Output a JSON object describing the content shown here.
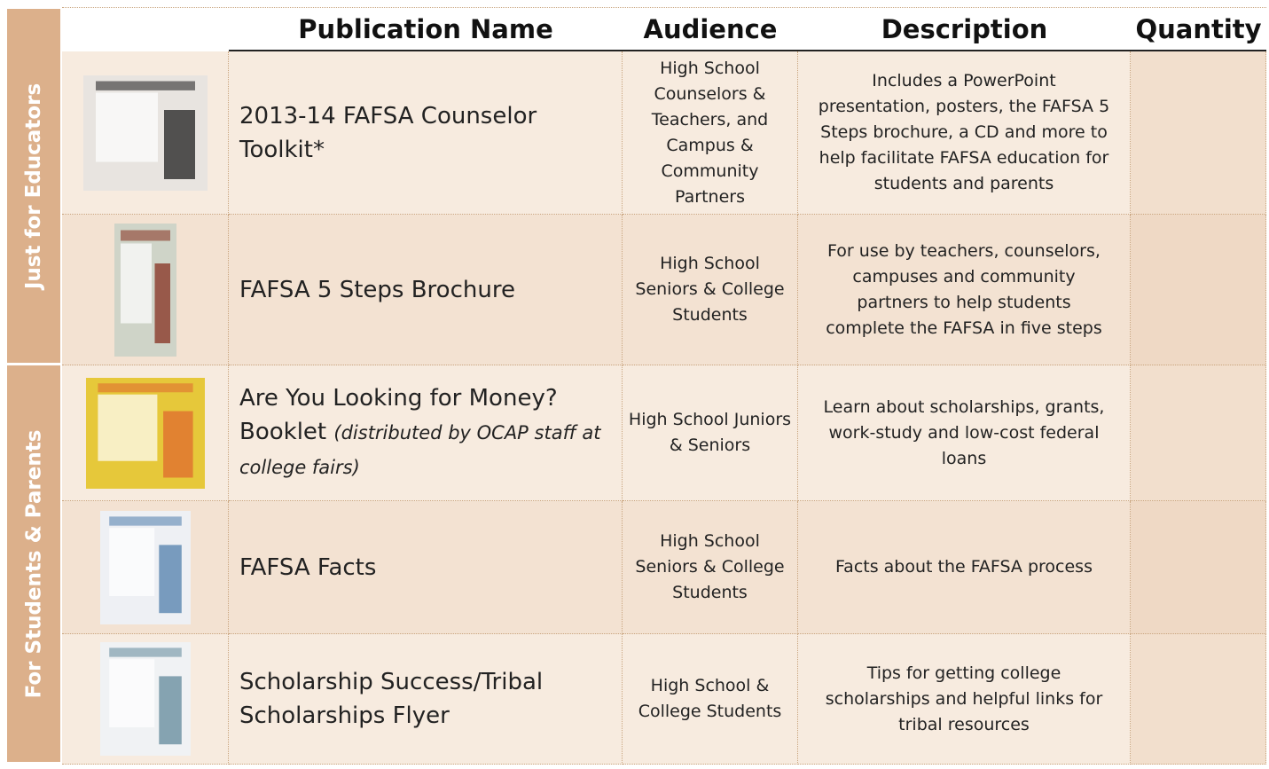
{
  "header": {
    "columns": [
      "Publication Name",
      "Audience",
      "Description",
      "Quantity"
    ]
  },
  "sections": [
    {
      "label": "Just for Educators",
      "rows": [
        {
          "name": "2013-14 FAFSA Counselor Toolkit*",
          "audience": "High School Counselors & Teachers, and Campus & Community Partners",
          "description": "Includes a PowerPoint presentation, posters, the FAFSA 5 Steps brochure, a CD and more to help facilitate FAFSA education for students and parents"
        },
        {
          "name": "FAFSA 5 Steps Brochure",
          "audience": "High School Seniors & College Students",
          "description": "For use by teachers, counselors, campuses and community partners to help students complete the FAFSA in five steps"
        }
      ]
    },
    {
      "label": "For Students & Parents",
      "rows": [
        {
          "name": "Are You Looking for Money? Booklet",
          "note": "(distributed by OCAP staff at college fairs)",
          "audience": "High School Juniors & Seniors",
          "description": "Learn about scholarships, grants, work-study and low-cost federal loans"
        },
        {
          "name": "FAFSA Facts",
          "audience": "High School Seniors & College Students",
          "description": "Facts about the FAFSA process"
        },
        {
          "name": "Scholarship Success/Tribal Scholarships Flyer",
          "audience": "High School & College Students",
          "description": "Tips for getting college scholarships and helpful links for tribal resources"
        }
      ]
    }
  ]
}
